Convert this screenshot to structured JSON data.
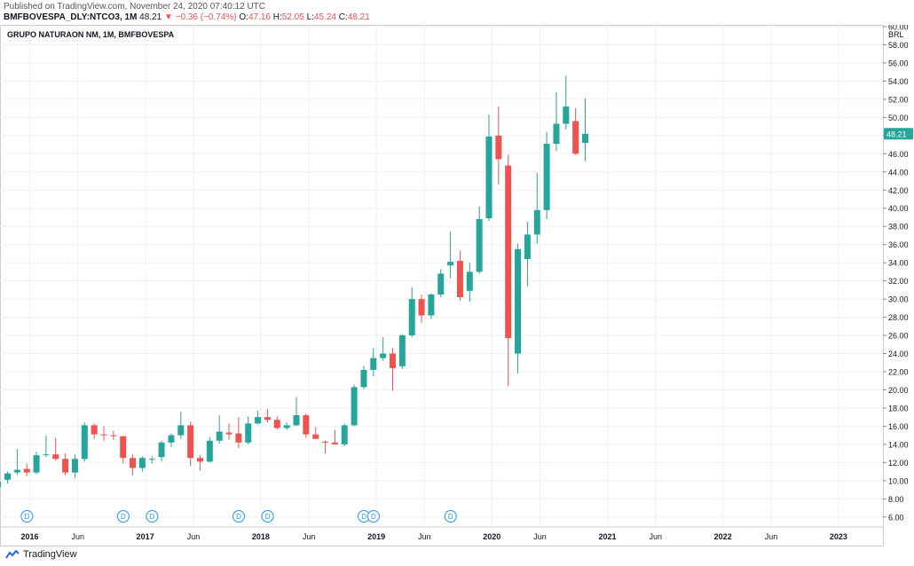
{
  "header": {
    "published": "Published on TradingView.com, November 24, 2020 07:40:12 UTC",
    "symbol": "BMFBOVESPA_DLY:NTCO3, 1M",
    "last": "48.21",
    "change": "▼ −0.36 (−0.74%)",
    "o_label": "O:",
    "o_value": "47.16",
    "h_label": "H:",
    "h_value": "52.05",
    "l_label": "L:",
    "l_value": "45.24",
    "c_label": "C:",
    "c_value": "48.21"
  },
  "footer": {
    "brand": "TradingView"
  },
  "colors": {
    "up": "#26a69a",
    "down": "#ef5350",
    "price_tag": "#26a69a",
    "dividend": "#2196f3"
  },
  "chart_data": {
    "type": "candlestick",
    "title": "GRUPO NATURAON NM, 1M, BMFBOVESPA",
    "currency": "BRL",
    "last_price_label": "48.21",
    "ylim": [
      5,
      60
    ],
    "y_ticks": [
      "6.00",
      "8.00",
      "10.00",
      "12.00",
      "14.00",
      "16.00",
      "18.00",
      "20.00",
      "22.00",
      "24.00",
      "26.00",
      "28.00",
      "30.00",
      "32.00",
      "34.00",
      "36.00",
      "38.00",
      "40.00",
      "42.00",
      "44.00",
      "46.00",
      "48.00",
      "50.00",
      "52.00",
      "54.00",
      "56.00",
      "58.00",
      "60.00"
    ],
    "x_ticks": [
      {
        "label": "2016",
        "month": 0,
        "bold": true
      },
      {
        "label": "Jun",
        "month": 5,
        "bold": false
      },
      {
        "label": "2017",
        "month": 12,
        "bold": true
      },
      {
        "label": "Jun",
        "month": 17,
        "bold": false
      },
      {
        "label": "2018",
        "month": 24,
        "bold": true
      },
      {
        "label": "Jun",
        "month": 29,
        "bold": false
      },
      {
        "label": "2019",
        "month": 36,
        "bold": true
      },
      {
        "label": "Jun",
        "month": 41,
        "bold": false
      },
      {
        "label": "2020",
        "month": 48,
        "bold": true
      },
      {
        "label": "Jun",
        "month": 53,
        "bold": false
      },
      {
        "label": "2021",
        "month": 60,
        "bold": true
      },
      {
        "label": "Jun",
        "month": 65,
        "bold": false
      },
      {
        "label": "2022",
        "month": 72,
        "bold": true
      },
      {
        "label": "Jun",
        "month": 77,
        "bold": false
      },
      {
        "label": "2023",
        "month": 84,
        "bold": true
      }
    ],
    "dividend_marks": [
      {
        "label": "D",
        "month": 1
      },
      {
        "label": "D",
        "month": 11
      },
      {
        "label": "D",
        "month": 14
      },
      {
        "label": "D",
        "month": 23
      },
      {
        "label": "D",
        "month": 26
      },
      {
        "label": "D",
        "month": 36
      },
      {
        "label": "D",
        "month": 37
      },
      {
        "label": "D",
        "month": 45
      }
    ],
    "candles": [
      {
        "o": 9.3,
        "h": 10.0,
        "l": 9.0,
        "c": 9.9
      },
      {
        "o": 10.1,
        "h": 11.0,
        "l": 9.7,
        "c": 10.8
      },
      {
        "o": 10.9,
        "h": 13.5,
        "l": 10.6,
        "c": 11.2
      },
      {
        "o": 11.3,
        "h": 11.9,
        "l": 10.5,
        "c": 10.9
      },
      {
        "o": 10.9,
        "h": 13.2,
        "l": 10.7,
        "c": 12.8
      },
      {
        "o": 12.8,
        "h": 15.0,
        "l": 12.6,
        "c": 12.9
      },
      {
        "o": 12.9,
        "h": 14.7,
        "l": 12.2,
        "c": 12.4
      },
      {
        "o": 12.4,
        "h": 13.0,
        "l": 10.6,
        "c": 10.9
      },
      {
        "o": 10.9,
        "h": 12.9,
        "l": 10.3,
        "c": 12.4
      },
      {
        "o": 12.4,
        "h": 16.4,
        "l": 12.1,
        "c": 16.1
      },
      {
        "o": 16.1,
        "h": 16.3,
        "l": 14.6,
        "c": 15.1
      },
      {
        "o": 15.1,
        "h": 16.0,
        "l": 14.4,
        "c": 15.0
      },
      {
        "o": 15.0,
        "h": 15.5,
        "l": 14.5,
        "c": 14.9
      },
      {
        "o": 14.9,
        "h": 14.9,
        "l": 11.9,
        "c": 12.5
      },
      {
        "o": 12.5,
        "h": 12.9,
        "l": 10.6,
        "c": 11.4
      },
      {
        "o": 11.4,
        "h": 12.7,
        "l": 11.0,
        "c": 12.5
      },
      {
        "o": 12.3,
        "h": 12.7,
        "l": 11.9,
        "c": 12.4
      },
      {
        "o": 12.6,
        "h": 14.4,
        "l": 12.1,
        "c": 14.2
      },
      {
        "o": 14.2,
        "h": 15.2,
        "l": 13.7,
        "c": 15.0
      },
      {
        "o": 15.0,
        "h": 17.6,
        "l": 14.6,
        "c": 16.1
      },
      {
        "o": 16.1,
        "h": 16.5,
        "l": 11.6,
        "c": 12.5
      },
      {
        "o": 12.5,
        "h": 12.8,
        "l": 11.1,
        "c": 12.1
      },
      {
        "o": 12.1,
        "h": 14.8,
        "l": 12.0,
        "c": 14.4
      },
      {
        "o": 14.4,
        "h": 17.2,
        "l": 14.1,
        "c": 15.4
      },
      {
        "o": 15.3,
        "h": 16.3,
        "l": 14.5,
        "c": 15.1
      },
      {
        "o": 15.2,
        "h": 17.0,
        "l": 13.6,
        "c": 14.2
      },
      {
        "o": 14.2,
        "h": 17.1,
        "l": 14.0,
        "c": 16.3
      },
      {
        "o": 16.3,
        "h": 17.7,
        "l": 16.2,
        "c": 17.0
      },
      {
        "o": 17.0,
        "h": 17.9,
        "l": 16.4,
        "c": 16.7
      },
      {
        "o": 16.7,
        "h": 17.1,
        "l": 15.6,
        "c": 15.8
      },
      {
        "o": 15.8,
        "h": 16.4,
        "l": 15.6,
        "c": 16.1
      },
      {
        "o": 16.1,
        "h": 19.2,
        "l": 16.0,
        "c": 17.2
      },
      {
        "o": 17.2,
        "h": 17.4,
        "l": 14.7,
        "c": 15.1
      },
      {
        "o": 15.1,
        "h": 15.9,
        "l": 14.6,
        "c": 14.6
      },
      {
        "o": 14.3,
        "h": 14.4,
        "l": 13.0,
        "c": 14.2
      },
      {
        "o": 14.2,
        "h": 15.6,
        "l": 14.0,
        "c": 14.0
      },
      {
        "o": 14.0,
        "h": 16.3,
        "l": 13.8,
        "c": 16.1
      },
      {
        "o": 16.1,
        "h": 20.6,
        "l": 16.0,
        "c": 20.3
      },
      {
        "o": 20.3,
        "h": 22.6,
        "l": 20.1,
        "c": 22.2
      },
      {
        "o": 22.2,
        "h": 24.6,
        "l": 21.5,
        "c": 23.5
      },
      {
        "o": 23.5,
        "h": 25.8,
        "l": 23.2,
        "c": 24.0
      },
      {
        "o": 24.0,
        "h": 24.6,
        "l": 19.9,
        "c": 22.4
      },
      {
        "o": 22.6,
        "h": 26.1,
        "l": 22.3,
        "c": 26.0
      },
      {
        "o": 26.0,
        "h": 31.3,
        "l": 25.8,
        "c": 30.0
      },
      {
        "o": 30.0,
        "h": 30.5,
        "l": 27.4,
        "c": 28.2
      },
      {
        "o": 28.2,
        "h": 30.6,
        "l": 27.8,
        "c": 30.5
      },
      {
        "o": 30.5,
        "h": 33.3,
        "l": 30.2,
        "c": 32.8
      },
      {
        "o": 33.7,
        "h": 37.4,
        "l": 32.3,
        "c": 34.1
      },
      {
        "o": 34.2,
        "h": 35.3,
        "l": 29.8,
        "c": 30.2
      },
      {
        "o": 30.9,
        "h": 34.0,
        "l": 29.7,
        "c": 33.0
      },
      {
        "o": 33.0,
        "h": 40.2,
        "l": 32.8,
        "c": 38.8
      },
      {
        "o": 38.9,
        "h": 50.3,
        "l": 38.6,
        "c": 47.9
      },
      {
        "o": 48.0,
        "h": 51.2,
        "l": 42.6,
        "c": 45.4
      },
      {
        "o": 44.7,
        "h": 45.9,
        "l": 20.4,
        "c": 25.7
      },
      {
        "o": 24.0,
        "h": 36.1,
        "l": 21.8,
        "c": 35.5
      },
      {
        "o": 34.4,
        "h": 38.5,
        "l": 31.4,
        "c": 37.1
      },
      {
        "o": 37.1,
        "h": 43.9,
        "l": 36.1,
        "c": 39.8
      },
      {
        "o": 39.8,
        "h": 48.4,
        "l": 38.8,
        "c": 47.1
      },
      {
        "o": 47.1,
        "h": 52.8,
        "l": 46.3,
        "c": 49.3
      },
      {
        "o": 49.3,
        "h": 54.6,
        "l": 48.7,
        "c": 51.2
      },
      {
        "o": 49.6,
        "h": 51.0,
        "l": 45.9,
        "c": 46.0
      },
      {
        "o": 47.2,
        "h": 52.1,
        "l": 45.2,
        "c": 48.2
      }
    ]
  }
}
